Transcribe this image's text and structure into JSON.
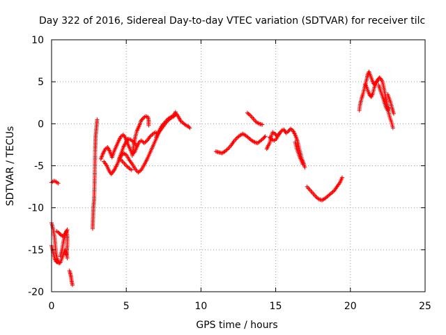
{
  "chart_data": {
    "type": "scatter",
    "title": "Day 322 of 2016, Sidereal Day-to-day VTEC variation (SDTVAR) for receiver tilc",
    "xlabel": "GPS time / hours",
    "ylabel": "SDTVAR / TECUs",
    "xlim": [
      0,
      25
    ],
    "ylim": [
      -20,
      10
    ],
    "x_ticks": [
      "0",
      "5",
      "10",
      "15",
      "20",
      "25"
    ],
    "y_ticks": [
      "-20",
      "-15",
      "-10",
      "-5",
      "0",
      "5",
      "10"
    ],
    "grid": true,
    "marker": "+",
    "color": "#ff0000",
    "series": [
      {
        "segments": [
          [
            [
              0.0,
              -7.0
            ],
            [
              0.15,
              -6.8
            ],
            [
              0.3,
              -6.9
            ],
            [
              0.45,
              -7.1
            ]
          ],
          [
            [
              0.0,
              -11.8
            ],
            [
              0.1,
              -12.5
            ],
            [
              0.2,
              -13.5
            ],
            [
              0.25,
              -14.5
            ],
            [
              0.3,
              -15.5
            ],
            [
              0.4,
              -16.2
            ],
            [
              0.5,
              -16.6
            ],
            [
              0.6,
              -16.5
            ],
            [
              0.7,
              -16.0
            ],
            [
              0.8,
              -15.5
            ],
            [
              0.9,
              -15.0
            ],
            [
              1.0,
              -15.5
            ],
            [
              1.05,
              -16.0
            ]
          ],
          [
            [
              0.0,
              -14.5
            ],
            [
              0.1,
              -15.3
            ],
            [
              0.2,
              -16.0
            ],
            [
              0.3,
              -16.4
            ],
            [
              0.4,
              -16.5
            ]
          ],
          [
            [
              0.35,
              -12.8
            ],
            [
              0.5,
              -13.0
            ],
            [
              0.65,
              -13.3
            ],
            [
              0.8,
              -13.4
            ],
            [
              0.95,
              -13.0
            ],
            [
              1.05,
              -12.6
            ]
          ],
          [
            [
              0.6,
              -15.8
            ],
            [
              0.7,
              -15.0
            ],
            [
              0.8,
              -14.0
            ],
            [
              0.9,
              -13.2
            ],
            [
              1.0,
              -12.8
            ],
            [
              1.05,
              -13.4
            ],
            [
              1.05,
              -14.5
            ],
            [
              1.0,
              -15.6
            ]
          ],
          [
            [
              1.2,
              -17.5
            ],
            [
              1.25,
              -17.8
            ],
            [
              1.3,
              -18.2
            ],
            [
              1.35,
              -18.8
            ],
            [
              1.4,
              -19.2
            ]
          ],
          [
            [
              2.75,
              -12.5
            ],
            [
              2.78,
              -11.0
            ],
            [
              2.8,
              -10.0
            ],
            [
              2.85,
              -9.0
            ],
            [
              2.88,
              -7.0
            ],
            [
              2.9,
              -5.0
            ],
            [
              2.92,
              -3.0
            ],
            [
              2.95,
              -1.5
            ],
            [
              3.0,
              -0.5
            ],
            [
              3.05,
              0.5
            ]
          ],
          [
            [
              3.3,
              -4.2
            ],
            [
              3.45,
              -3.5
            ],
            [
              3.6,
              -3.0
            ],
            [
              3.75,
              -2.8
            ],
            [
              3.9,
              -3.3
            ],
            [
              4.05,
              -4.0
            ],
            [
              4.2,
              -3.2
            ],
            [
              4.35,
              -2.6
            ],
            [
              4.5,
              -2.0
            ],
            [
              4.65,
              -1.5
            ],
            [
              4.8,
              -1.3
            ],
            [
              4.95,
              -1.7
            ],
            [
              5.1,
              -2.4
            ],
            [
              5.25,
              -3.0
            ],
            [
              5.4,
              -3.6
            ],
            [
              5.55,
              -3.4
            ],
            [
              5.7,
              -2.8
            ],
            [
              5.85,
              -2.2
            ],
            [
              6.0,
              -2.0
            ],
            [
              6.2,
              -2.3
            ],
            [
              6.4,
              -2.0
            ],
            [
              6.6,
              -1.5
            ],
            [
              6.8,
              -1.2
            ],
            [
              6.95,
              -1.0
            ],
            [
              7.1,
              -1.2
            ]
          ],
          [
            [
              3.5,
              -4.5
            ],
            [
              3.7,
              -5.0
            ],
            [
              3.85,
              -5.6
            ],
            [
              4.0,
              -6.0
            ],
            [
              4.2,
              -5.5
            ],
            [
              4.4,
              -4.8
            ],
            [
              4.6,
              -4.0
            ],
            [
              4.8,
              -3.5
            ],
            [
              5.0,
              -3.7
            ],
            [
              5.2,
              -4.3
            ],
            [
              5.4,
              -4.8
            ],
            [
              5.6,
              -5.4
            ],
            [
              5.8,
              -5.8
            ],
            [
              6.0,
              -5.5
            ],
            [
              6.2,
              -4.9
            ],
            [
              6.4,
              -4.2
            ],
            [
              6.6,
              -3.4
            ],
            [
              6.8,
              -2.6
            ],
            [
              7.0,
              -1.8
            ],
            [
              7.2,
              -1.0
            ],
            [
              7.4,
              -0.5
            ],
            [
              7.6,
              0.0
            ],
            [
              7.8,
              0.4
            ],
            [
              8.0,
              0.7
            ],
            [
              8.2,
              0.9
            ],
            [
              8.35,
              1.2
            ],
            [
              8.5,
              0.8
            ],
            [
              8.65,
              0.3
            ],
            [
              8.8,
              0.1
            ],
            [
              9.0,
              -0.2
            ],
            [
              9.15,
              -0.3
            ],
            [
              9.25,
              -0.5
            ]
          ],
          [
            [
              4.5,
              -4.3
            ],
            [
              4.65,
              -3.6
            ],
            [
              4.8,
              -2.8
            ],
            [
              4.95,
              -2.3
            ],
            [
              5.1,
              -1.8
            ],
            [
              5.3,
              -1.9
            ],
            [
              5.5,
              -2.2
            ],
            [
              5.7,
              -2.6
            ]
          ],
          [
            [
              4.6,
              -4.2
            ],
            [
              4.8,
              -4.6
            ],
            [
              5.0,
              -5.0
            ],
            [
              5.2,
              -5.3
            ],
            [
              5.35,
              -5.5
            ]
          ],
          [
            [
              5.4,
              -3.8
            ],
            [
              5.5,
              -2.5
            ],
            [
              5.6,
              -1.6
            ],
            [
              5.7,
              -0.9
            ],
            [
              5.8,
              -0.5
            ],
            [
              5.9,
              -0.1
            ],
            [
              6.0,
              0.4
            ],
            [
              6.15,
              0.7
            ],
            [
              6.3,
              0.9
            ],
            [
              6.45,
              0.8
            ],
            [
              6.5,
              0.4
            ],
            [
              6.5,
              -0.2
            ]
          ],
          [
            [
              7.0,
              -1.6
            ],
            [
              7.2,
              -0.8
            ],
            [
              7.4,
              -0.2
            ],
            [
              7.6,
              0.2
            ],
            [
              7.8,
              0.6
            ],
            [
              8.0,
              0.8
            ],
            [
              8.2,
              1.1
            ],
            [
              8.3,
              1.4
            ]
          ],
          [
            [
              11.0,
              -3.3
            ],
            [
              11.2,
              -3.4
            ],
            [
              11.4,
              -3.5
            ],
            [
              11.6,
              -3.3
            ],
            [
              11.8,
              -3.0
            ],
            [
              12.0,
              -2.6
            ],
            [
              12.2,
              -2.1
            ],
            [
              12.4,
              -1.7
            ],
            [
              12.6,
              -1.4
            ],
            [
              12.8,
              -1.2
            ],
            [
              13.0,
              -1.4
            ],
            [
              13.2,
              -1.7
            ],
            [
              13.4,
              -2.0
            ],
            [
              13.6,
              -2.2
            ],
            [
              13.8,
              -2.3
            ],
            [
              14.0,
              -2.0
            ],
            [
              14.2,
              -1.7
            ],
            [
              14.3,
              -1.5
            ]
          ],
          [
            [
              13.1,
              1.3
            ],
            [
              13.3,
              1.0
            ],
            [
              13.5,
              0.6
            ],
            [
              13.7,
              0.2
            ],
            [
              13.9,
              0.0
            ],
            [
              14.1,
              -0.1
            ]
          ],
          [
            [
              14.4,
              -3.0
            ],
            [
              14.5,
              -2.6
            ],
            [
              14.6,
              -2.3
            ],
            [
              14.7,
              -1.5
            ],
            [
              14.8,
              -1.0
            ],
            [
              14.95,
              -1.2
            ],
            [
              15.1,
              -1.5
            ],
            [
              15.25,
              -1.2
            ],
            [
              15.4,
              -0.8
            ],
            [
              15.55,
              -0.7
            ],
            [
              15.7,
              -1.1
            ],
            [
              15.85,
              -0.9
            ],
            [
              16.0,
              -0.6
            ],
            [
              16.15,
              -0.8
            ],
            [
              16.3,
              -1.3
            ],
            [
              16.45,
              -2.0
            ],
            [
              16.55,
              -2.8
            ],
            [
              16.65,
              -3.5
            ],
            [
              16.75,
              -4.2
            ],
            [
              16.85,
              -4.6
            ],
            [
              16.95,
              -5.2
            ]
          ],
          [
            [
              14.6,
              -1.6
            ],
            [
              14.75,
              -1.9
            ],
            [
              14.9,
              -2.0
            ],
            [
              15.05,
              -1.8
            ],
            [
              15.2,
              -1.2
            ]
          ],
          [
            [
              16.3,
              -2.2
            ],
            [
              16.4,
              -2.9
            ],
            [
              16.5,
              -3.4
            ],
            [
              16.6,
              -3.9
            ],
            [
              16.7,
              -4.3
            ],
            [
              16.8,
              -4.8
            ]
          ],
          [
            [
              17.1,
              -7.5
            ],
            [
              17.3,
              -7.9
            ],
            [
              17.5,
              -8.3
            ],
            [
              17.7,
              -8.7
            ],
            [
              17.9,
              -9.0
            ],
            [
              18.1,
              -9.1
            ],
            [
              18.3,
              -8.9
            ],
            [
              18.5,
              -8.6
            ],
            [
              18.7,
              -8.3
            ],
            [
              18.9,
              -8.0
            ],
            [
              19.1,
              -7.5
            ],
            [
              19.3,
              -7.0
            ],
            [
              19.45,
              -6.4
            ]
          ],
          [
            [
              20.6,
              1.6
            ],
            [
              20.65,
              2.3
            ],
            [
              20.75,
              3.0
            ],
            [
              20.85,
              3.6
            ],
            [
              20.95,
              4.3
            ],
            [
              21.05,
              5.0
            ],
            [
              21.15,
              5.8
            ],
            [
              21.25,
              6.2
            ],
            [
              21.35,
              5.7
            ],
            [
              21.45,
              5.2
            ],
            [
              21.55,
              4.8
            ],
            [
              21.65,
              4.6
            ],
            [
              21.75,
              4.9
            ],
            [
              21.85,
              5.3
            ],
            [
              21.95,
              5.5
            ],
            [
              22.05,
              5.3
            ],
            [
              22.15,
              5.0
            ],
            [
              22.25,
              4.2
            ],
            [
              22.35,
              3.2
            ],
            [
              22.45,
              2.3
            ],
            [
              22.55,
              1.4
            ],
            [
              22.65,
              0.7
            ],
            [
              22.75,
              0.2
            ],
            [
              22.85,
              -0.5
            ]
          ],
          [
            [
              21.0,
              4.7
            ],
            [
              21.1,
              4.3
            ],
            [
              21.2,
              3.8
            ],
            [
              21.3,
              3.4
            ],
            [
              21.4,
              3.2
            ],
            [
              21.5,
              3.6
            ],
            [
              21.6,
              4.3
            ],
            [
              21.7,
              4.9
            ],
            [
              21.8,
              5.1
            ]
          ],
          [
            [
              21.9,
              4.6
            ],
            [
              22.0,
              4.0
            ],
            [
              22.1,
              3.5
            ],
            [
              22.2,
              3.0
            ],
            [
              22.3,
              2.4
            ],
            [
              22.4,
              1.9
            ],
            [
              22.5,
              1.6
            ],
            [
              22.55,
              1.9
            ]
          ],
          [
            [
              22.5,
              3.5
            ],
            [
              22.6,
              3.0
            ],
            [
              22.7,
              2.5
            ],
            [
              22.8,
              1.8
            ],
            [
              22.9,
              1.2
            ]
          ]
        ]
      }
    ]
  }
}
